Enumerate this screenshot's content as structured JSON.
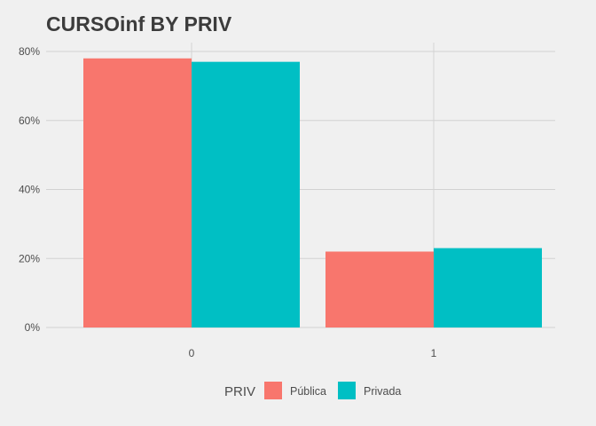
{
  "chart_data": {
    "type": "bar",
    "title": "CURSOinf BY PRIV",
    "xlabel": "",
    "ylabel": "",
    "categories": [
      "0",
      "1"
    ],
    "series": [
      {
        "name": "Pública",
        "color": "#f8766d",
        "values": [
          78,
          22
        ]
      },
      {
        "name": "Privada",
        "color": "#00bfc4",
        "values": [
          77,
          23
        ]
      }
    ],
    "ylim": [
      0,
      80
    ],
    "yticks": [
      0,
      20,
      40,
      60,
      80
    ],
    "ytick_labels": [
      "0%",
      "20%",
      "40%",
      "60%",
      "80%"
    ],
    "grid": true,
    "legend": {
      "title": "PRIV",
      "position": "bottom"
    }
  },
  "colors": {
    "background": "#f0f0f0",
    "grid": "#d2d2d2",
    "text": "#4d4d4d"
  }
}
